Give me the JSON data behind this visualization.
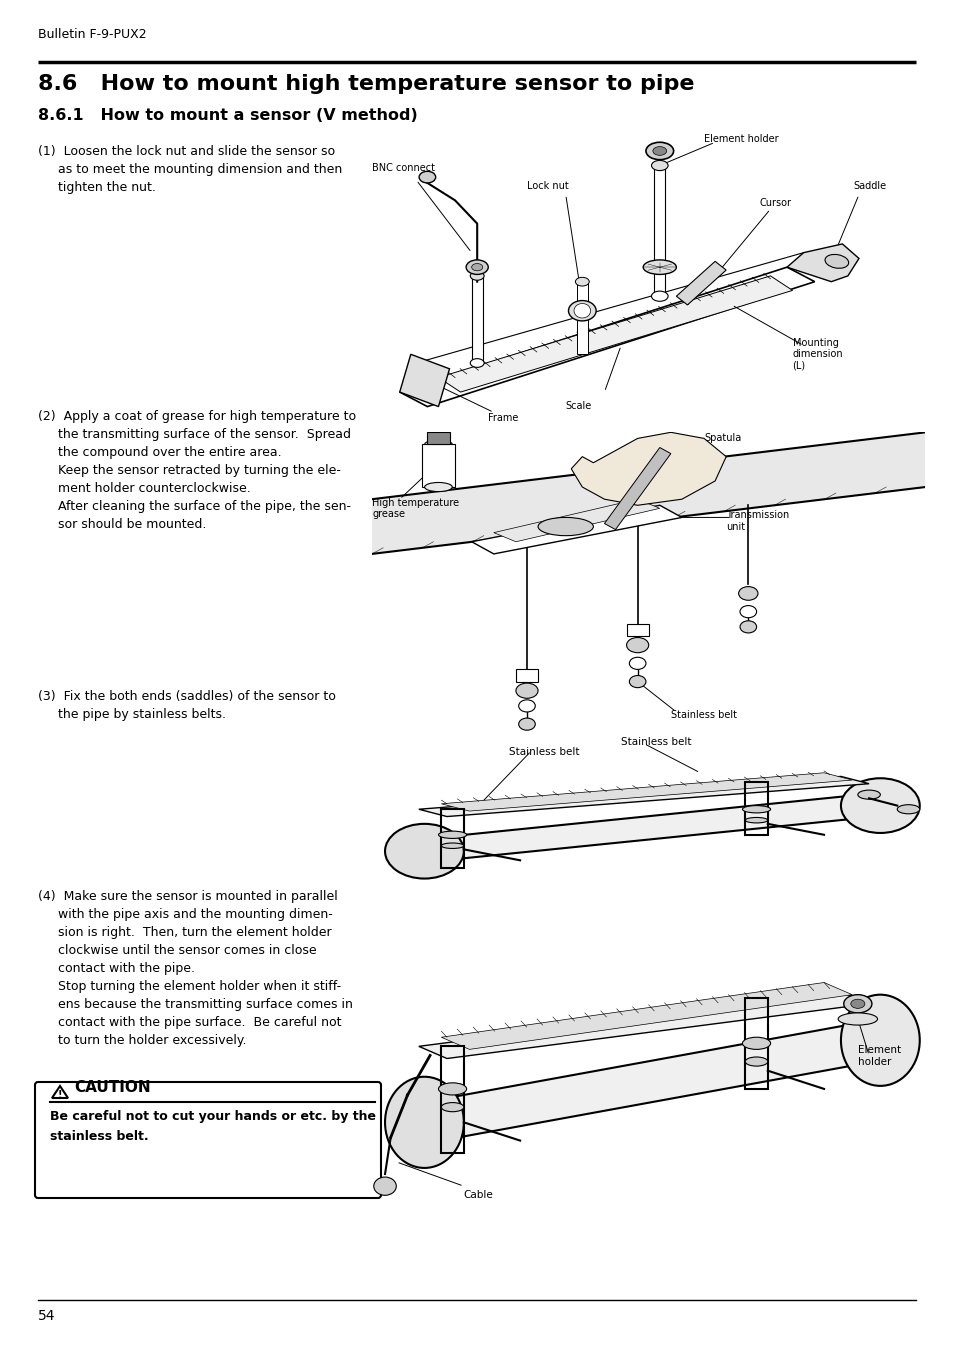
{
  "page_header": "Bulletin F-9-PUX2",
  "section_title": "8.6   How to mount high temperature sensor to pipe",
  "subsection_title": "8.6.1   How to mount a sensor (V method)",
  "background_color": "#ffffff",
  "text_color": "#000000",
  "page_number": "54",
  "step1_lines": [
    "(1)  Loosen the lock nut and slide the sensor so",
    "     as to meet the mounting dimension and then",
    "     tighten the nut."
  ],
  "step2_lines": [
    "(2)  Apply a coat of grease for high temperature to",
    "     the transmitting surface of the sensor.  Spread",
    "     the compound over the entire area.",
    "     Keep the sensor retracted by turning the ele-",
    "     ment holder counterclockwise.",
    "     After cleaning the surface of the pipe, the sen-",
    "     sor should be mounted."
  ],
  "step3_lines": [
    "(3)  Fix the both ends (saddles) of the sensor to",
    "     the pipe by stainless belts."
  ],
  "step4_lines": [
    "(4)  Make sure the sensor is mounted in parallel",
    "     with the pipe axis and the mounting dimen-",
    "     sion is right.  Then, turn the element holder",
    "     clockwise until the sensor comes in close",
    "     contact with the pipe.",
    "     Stop turning the element holder when it stiff-",
    "     ens because the transmitting surface comes in",
    "     contact with the pipe surface.  Be careful not",
    "     to turn the holder excessively."
  ],
  "caution_title": "CAUTION",
  "caution_line1": "Be careful not to cut your hands or etc. by the",
  "caution_line2": "stainless belt."
}
